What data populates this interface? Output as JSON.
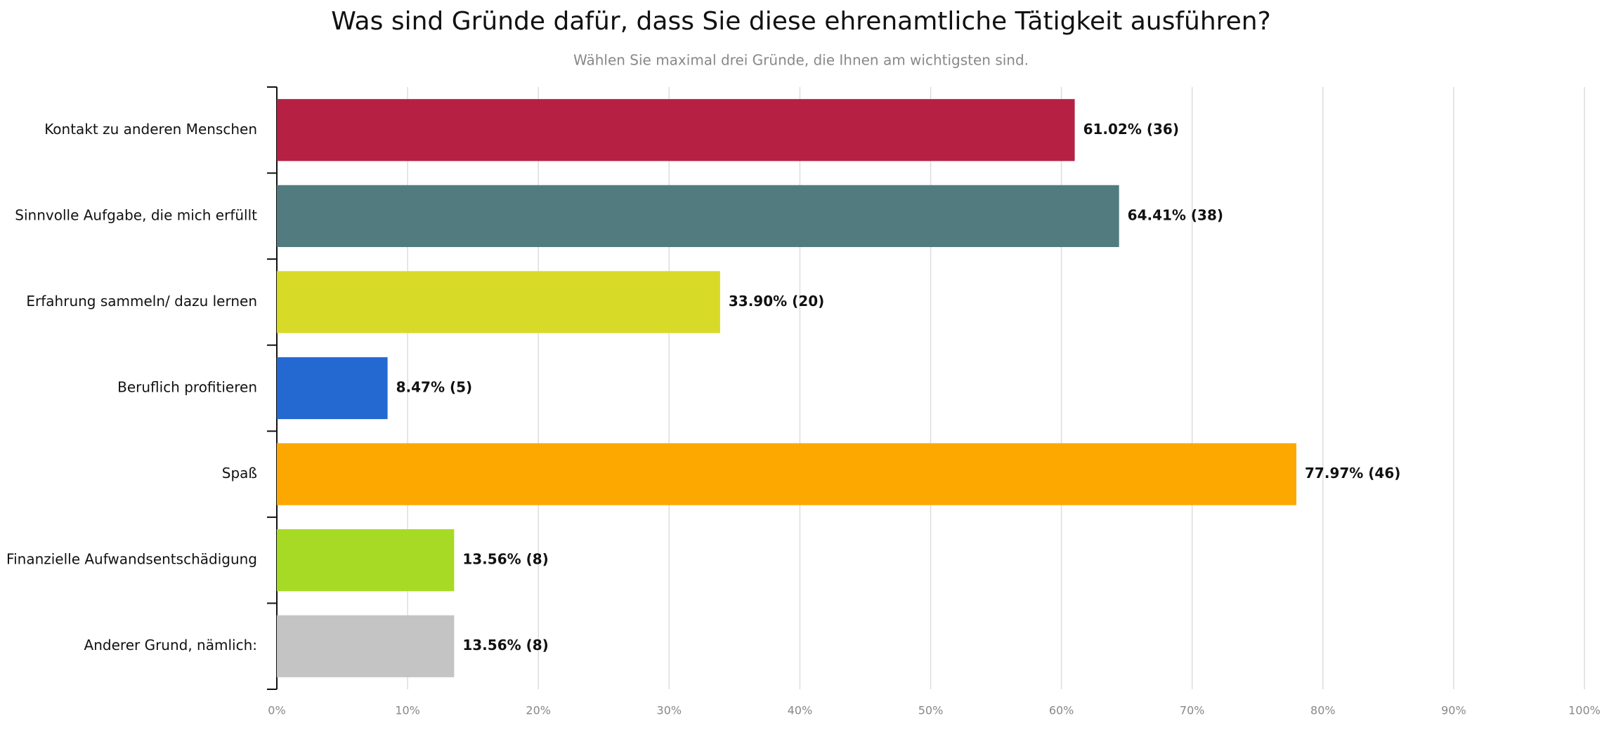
{
  "chart_data": {
    "type": "bar",
    "orientation": "horizontal",
    "title": "Was sind Gründe dafür, dass Sie diese ehrenamtliche Tätigkeit ausführen?",
    "subtitle": "Wählen Sie maximal drei Gründe, die Ihnen am wichtigsten sind.",
    "categories": [
      "Kontakt zu anderen Menschen",
      "Sinnvolle Aufgabe, die mich erfüllt",
      "Erfahrung sammeln/ dazu lernen",
      "Beruflich profitieren",
      "Spaß",
      "Finanzielle Aufwandsentschädigung",
      "Anderer Grund, nämlich:"
    ],
    "values": [
      61.02,
      64.41,
      33.9,
      8.47,
      77.97,
      13.56,
      13.56
    ],
    "value_labels": [
      "61.02% (36)",
      "64.41% (38)",
      "33.90% (20)",
      "8.47% (5)",
      "77.97% (46)",
      "13.56% (8)",
      "13.56% (8)"
    ],
    "colors": [
      "#b52043",
      "#527b80",
      "#d8da28",
      "#2469d1",
      "#fca800",
      "#a6da24",
      "#c4c4c4"
    ],
    "xlim": [
      0,
      100
    ],
    "xticks": [
      {
        "value": 0,
        "label": "0%"
      },
      {
        "value": 10,
        "label": "10%"
      },
      {
        "value": 20,
        "label": "20%"
      },
      {
        "value": 30,
        "label": "30%"
      },
      {
        "value": 40,
        "label": "40%"
      },
      {
        "value": 50,
        "label": "50%"
      },
      {
        "value": 60,
        "label": "60%"
      },
      {
        "value": 70,
        "label": "70%"
      },
      {
        "value": 80,
        "label": "80%"
      },
      {
        "value": 90,
        "label": "90%"
      },
      {
        "value": 100,
        "label": "100%"
      }
    ],
    "grid": true
  }
}
